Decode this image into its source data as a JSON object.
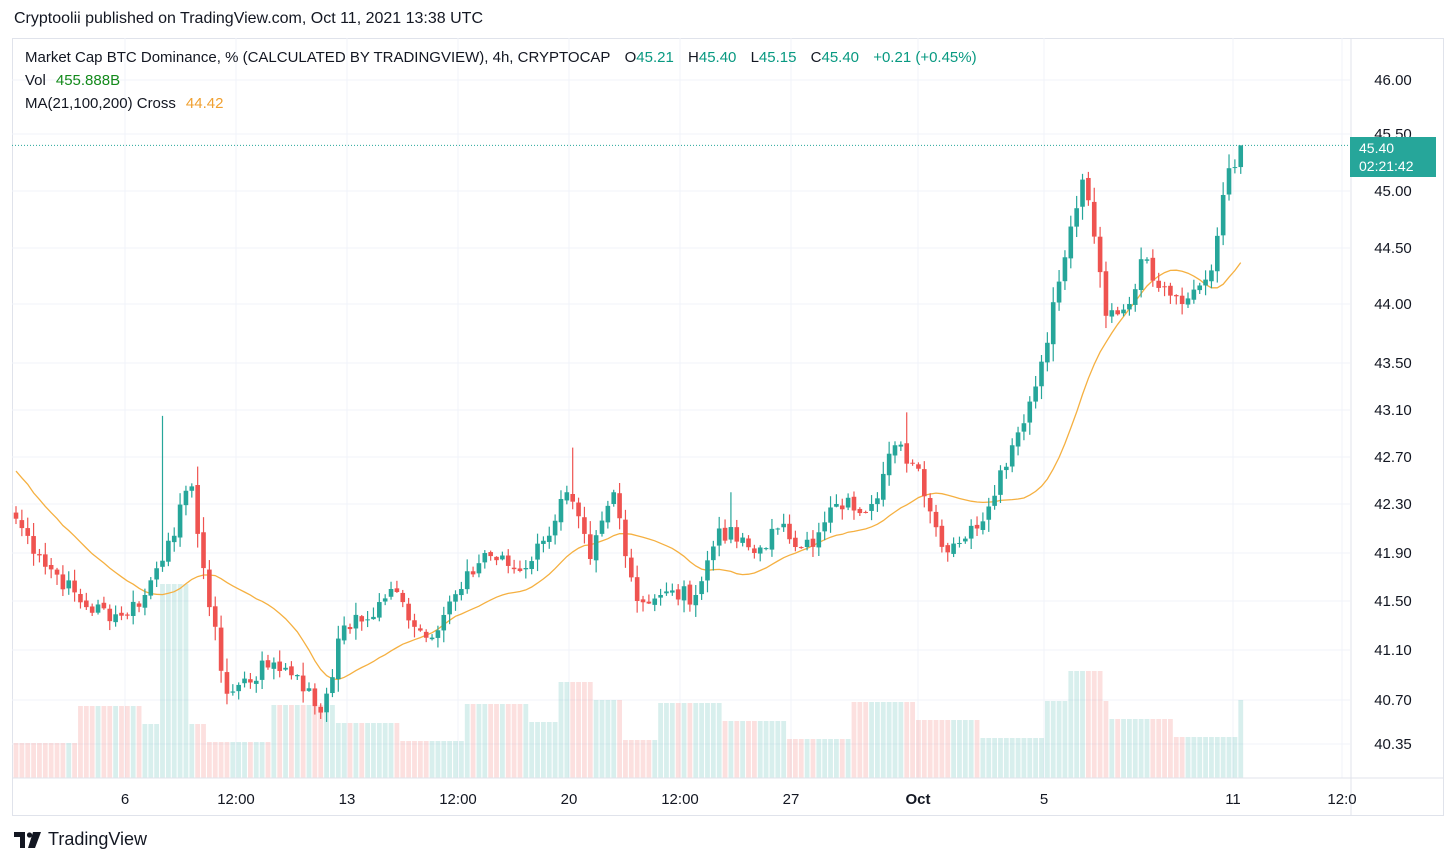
{
  "publisher_line": "Cryptoolii published on TradingView.com, Oct 11, 2021 13:38 UTC",
  "legend": {
    "title": "Market Cap BTC Dominance, % (CALCULATED BY TRADINGVIEW), 4h, CRYPTOCAP",
    "o_label": "O",
    "o_value": "45.21",
    "h_label": "H",
    "h_value": "45.40",
    "l_label": "L",
    "l_value": "45.15",
    "c_label": "C",
    "c_value": "45.40",
    "change": "+0.21 (+0.45%)",
    "vol_label": "Vol",
    "vol_value": "455.888B",
    "ma_label": "MA(21,100,200) Cross",
    "ma_value": "44.42"
  },
  "last_price": {
    "value": "45.40",
    "countdown": "02:21:42"
  },
  "brand": "TradingView",
  "colors": {
    "up": "#26a69a",
    "down": "#ef5350",
    "ma": "#f5b041",
    "grid": "#f0f3fa"
  },
  "chart_data": {
    "type": "candlestick",
    "symbol": "Market Cap BTC Dominance, %",
    "interval": "4h",
    "y_ticks": [
      "46.00",
      "45.50",
      "45.00",
      "44.50",
      "44.00",
      "43.50",
      "43.10",
      "42.70",
      "42.30",
      "41.90",
      "41.50",
      "41.10",
      "40.70",
      "40.35"
    ],
    "x_ticks": [
      "6",
      "12:00",
      "13",
      "12:00",
      "20",
      "12:00",
      "27",
      "Oct",
      "5",
      "11",
      "12:0"
    ],
    "close_anchors": [
      {
        "i": 0,
        "v": 42.18
      },
      {
        "i": 4,
        "v": 41.88
      },
      {
        "i": 12,
        "v": 41.45
      },
      {
        "i": 18,
        "v": 41.38
      },
      {
        "i": 22,
        "v": 41.55
      },
      {
        "i": 26,
        "v": 42.0
      },
      {
        "i": 30,
        "v": 42.45
      },
      {
        "i": 33,
        "v": 41.45
      },
      {
        "i": 36,
        "v": 40.75
      },
      {
        "i": 44,
        "v": 41.0
      },
      {
        "i": 48,
        "v": 40.9
      },
      {
        "i": 52,
        "v": 40.6
      },
      {
        "i": 56,
        "v": 41.3
      },
      {
        "i": 60,
        "v": 41.35
      },
      {
        "i": 64,
        "v": 41.6
      },
      {
        "i": 70,
        "v": 41.2
      },
      {
        "i": 76,
        "v": 41.6
      },
      {
        "i": 80,
        "v": 41.9
      },
      {
        "i": 86,
        "v": 41.75
      },
      {
        "i": 90,
        "v": 42.0
      },
      {
        "i": 94,
        "v": 42.4
      },
      {
        "i": 98,
        "v": 41.85
      },
      {
        "i": 102,
        "v": 42.4
      },
      {
        "i": 106,
        "v": 41.5
      },
      {
        "i": 110,
        "v": 41.55
      },
      {
        "i": 116,
        "v": 41.55
      },
      {
        "i": 120,
        "v": 42.1
      },
      {
        "i": 126,
        "v": 41.9
      },
      {
        "i": 130,
        "v": 42.1
      },
      {
        "i": 136,
        "v": 41.95
      },
      {
        "i": 140,
        "v": 42.3
      },
      {
        "i": 146,
        "v": 42.3
      },
      {
        "i": 150,
        "v": 42.8
      },
      {
        "i": 154,
        "v": 42.6
      },
      {
        "i": 158,
        "v": 41.95
      },
      {
        "i": 164,
        "v": 42.1
      },
      {
        "i": 170,
        "v": 42.8
      },
      {
        "i": 174,
        "v": 43.3
      },
      {
        "i": 178,
        "v": 44.2
      },
      {
        "i": 182,
        "v": 45.1
      },
      {
        "i": 184,
        "v": 44.6
      },
      {
        "i": 186,
        "v": 43.9
      },
      {
        "i": 190,
        "v": 44.0
      },
      {
        "i": 192,
        "v": 44.4
      },
      {
        "i": 196,
        "v": 44.15
      },
      {
        "i": 200,
        "v": 44.05
      },
      {
        "i": 204,
        "v": 44.3
      },
      {
        "i": 207,
        "v": 45.2
      },
      {
        "i": 208,
        "v": 45.21
      },
      {
        "i": 209,
        "v": 45.4
      }
    ],
    "spikes": [
      {
        "i": 25,
        "high": 43.05
      },
      {
        "i": 95,
        "high": 42.78
      },
      {
        "i": 122,
        "high": 42.4
      },
      {
        "i": 152,
        "high": 43.08
      }
    ],
    "last_candle": {
      "open": 45.21,
      "high": 45.4,
      "low": 45.15,
      "close": 45.4
    },
    "ma": {
      "label": "MA(21,100,200) Cross",
      "last": 44.42
    },
    "volume": {
      "last": "455.888B"
    }
  }
}
